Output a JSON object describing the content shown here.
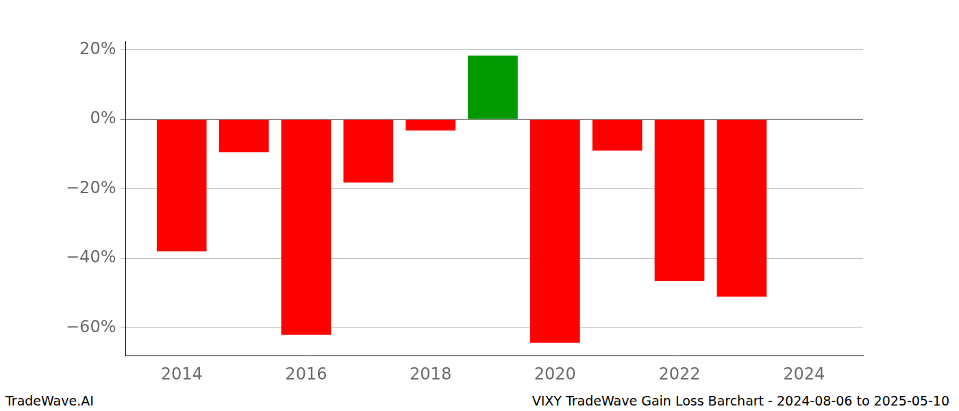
{
  "chart_data": {
    "type": "bar",
    "title": "VIXY TradeWave Gain Loss Barchart - 2024-08-06 to 2025-05-10",
    "annotations": [
      "TradeWave.AI"
    ],
    "x": [
      2014,
      2015,
      2016,
      2017,
      2018,
      2019,
      2020,
      2021,
      2022,
      2023
    ],
    "values": [
      -38,
      -9.5,
      -62,
      -18.2,
      -3.2,
      18.3,
      -64.3,
      -9,
      -46.5,
      -51
    ],
    "colors": [
      "#ff0000",
      "#ff0000",
      "#ff0000",
      "#ff0000",
      "#ff0000",
      "#009900",
      "#ff0000",
      "#ff0000",
      "#ff0000",
      "#ff0000"
    ],
    "xlim": [
      2013.1,
      2024.95
    ],
    "xticks": [
      2014,
      2016,
      2018,
      2020,
      2022,
      2024
    ],
    "ylim": [
      -68,
      22.5
    ],
    "yticks": [
      {
        "value": -60,
        "label": "−60%"
      },
      {
        "value": -40,
        "label": "−40%"
      },
      {
        "value": -20,
        "label": "−20%"
      },
      {
        "value": 0,
        "label": "0%"
      },
      {
        "value": 20,
        "label": "20%"
      }
    ],
    "grid": true
  }
}
